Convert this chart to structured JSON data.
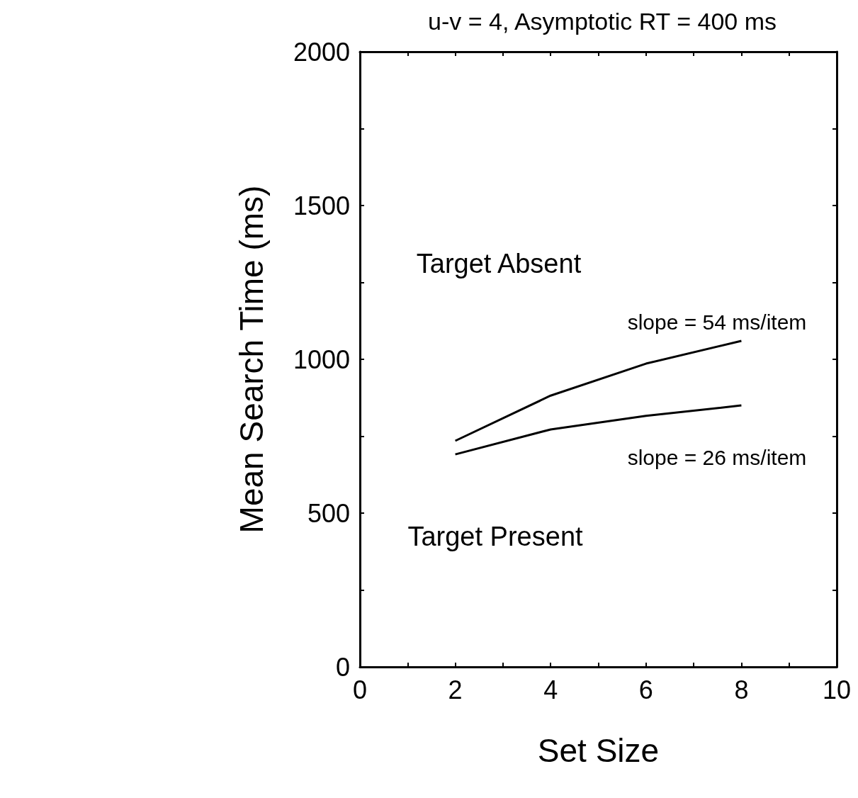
{
  "chart_data": {
    "type": "line",
    "title": "u-v = 4, Asymptotic RT = 400 ms",
    "xlabel": "Set Size",
    "ylabel": "Mean Search Time (ms)",
    "x": [
      2,
      4,
      6,
      8
    ],
    "series": [
      {
        "color": "#000000",
        "values": [
          735,
          882,
          986,
          1060
        ]
      },
      {
        "color": "#000000",
        "values": [
          691,
          772,
          816,
          850
        ]
      }
    ],
    "xlim": [
      0,
      10
    ],
    "ylim": [
      0,
      2000
    ],
    "xticks": [
      0,
      {
        "value": 1,
        "label": null
      },
      2,
      {
        "value": 3,
        "label": null
      },
      4,
      {
        "value": 5,
        "label": null
      },
      6,
      {
        "value": 7,
        "label": null
      },
      8,
      {
        "value": 9,
        "label": null
      },
      10
    ],
    "yticks": [
      0,
      {
        "value": 250,
        "label": null
      },
      500,
      {
        "value": 750,
        "label": null
      },
      1000,
      {
        "value": 1250,
        "label": null
      },
      1500,
      {
        "value": 1750,
        "label": null
      },
      2000
    ],
    "annotations": [
      "Target Absent",
      "slope = 54 ms/item",
      "slope = 26 ms/item",
      "Target Present"
    ],
    "grid": false,
    "marker": "none",
    "line_style": "solid"
  }
}
